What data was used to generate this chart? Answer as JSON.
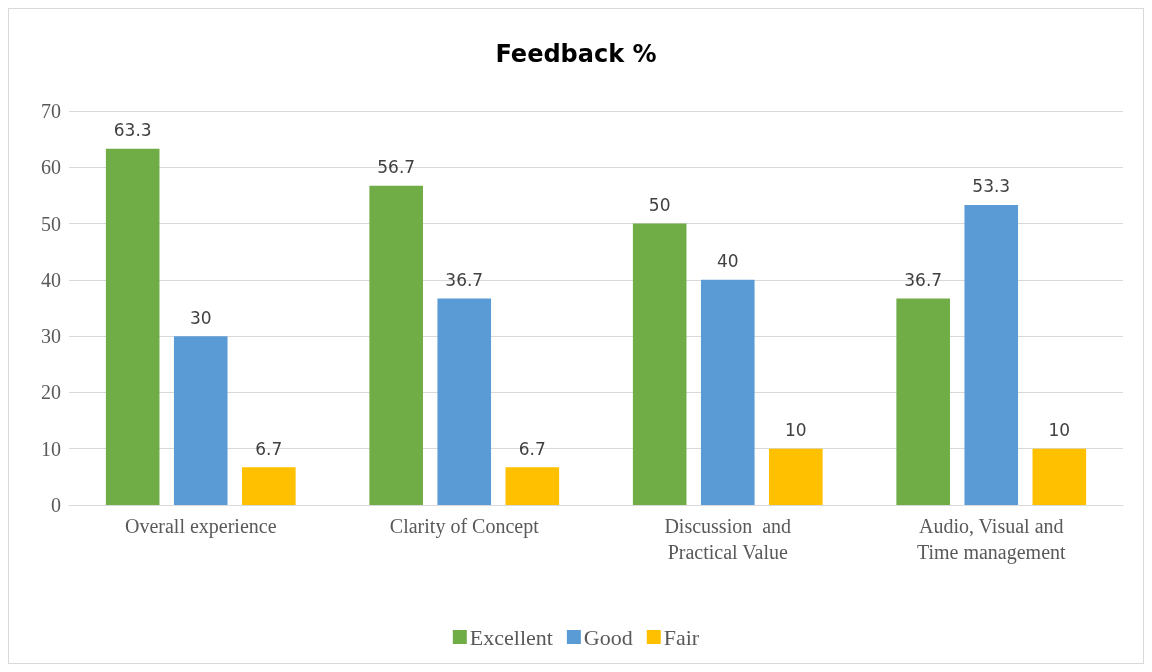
{
  "chart_data": {
    "type": "bar",
    "title": "Feedback %",
    "categories": [
      "Overall experience",
      "Clarity of Concept",
      "Discussion  and\nPractical Value",
      "Audio, Visual and\nTime management"
    ],
    "series": [
      {
        "name": "Excellent",
        "color": "#70ad47",
        "values": [
          63.3,
          56.7,
          50,
          36.7
        ]
      },
      {
        "name": "Good",
        "color": "#5b9bd5",
        "values": [
          30,
          36.7,
          40,
          53.3
        ]
      },
      {
        "name": "Fair",
        "color": "#ffc000",
        "values": [
          6.7,
          6.7,
          10,
          10
        ]
      }
    ],
    "ylim": [
      0,
      70
    ],
    "yticks": [
      0,
      10,
      20,
      30,
      40,
      50,
      60,
      70
    ],
    "grid": "y",
    "legend": "bottom",
    "data_labels": true
  }
}
